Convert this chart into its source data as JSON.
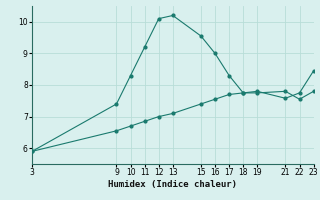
{
  "xlabel": "Humidex (Indice chaleur)",
  "ylabel": "",
  "background_color": "#d9f0ee",
  "line_color": "#1a7a6e",
  "grid_color": "#b8ddd8",
  "line1_x": [
    3,
    9,
    10,
    11,
    12,
    13,
    15,
    16,
    17,
    18,
    19,
    21,
    22,
    23
  ],
  "line1_y": [
    5.9,
    7.4,
    8.3,
    9.2,
    10.1,
    10.2,
    9.55,
    9.0,
    8.3,
    7.75,
    7.75,
    7.8,
    7.55,
    7.8
  ],
  "line2_x": [
    3,
    9,
    10,
    11,
    12,
    13,
    15,
    16,
    17,
    18,
    19,
    21,
    22,
    23
  ],
  "line2_y": [
    5.9,
    6.55,
    6.7,
    6.85,
    7.0,
    7.1,
    7.4,
    7.55,
    7.7,
    7.75,
    7.8,
    7.58,
    7.75,
    8.45
  ],
  "xlim": [
    3,
    23
  ],
  "ylim": [
    5.5,
    10.5
  ],
  "xticks": [
    3,
    9,
    10,
    11,
    12,
    13,
    15,
    16,
    17,
    18,
    19,
    21,
    22,
    23
  ],
  "yticks": [
    6,
    7,
    8,
    9,
    10
  ],
  "tick_fontsize": 5.5,
  "xlabel_fontsize": 6.5
}
